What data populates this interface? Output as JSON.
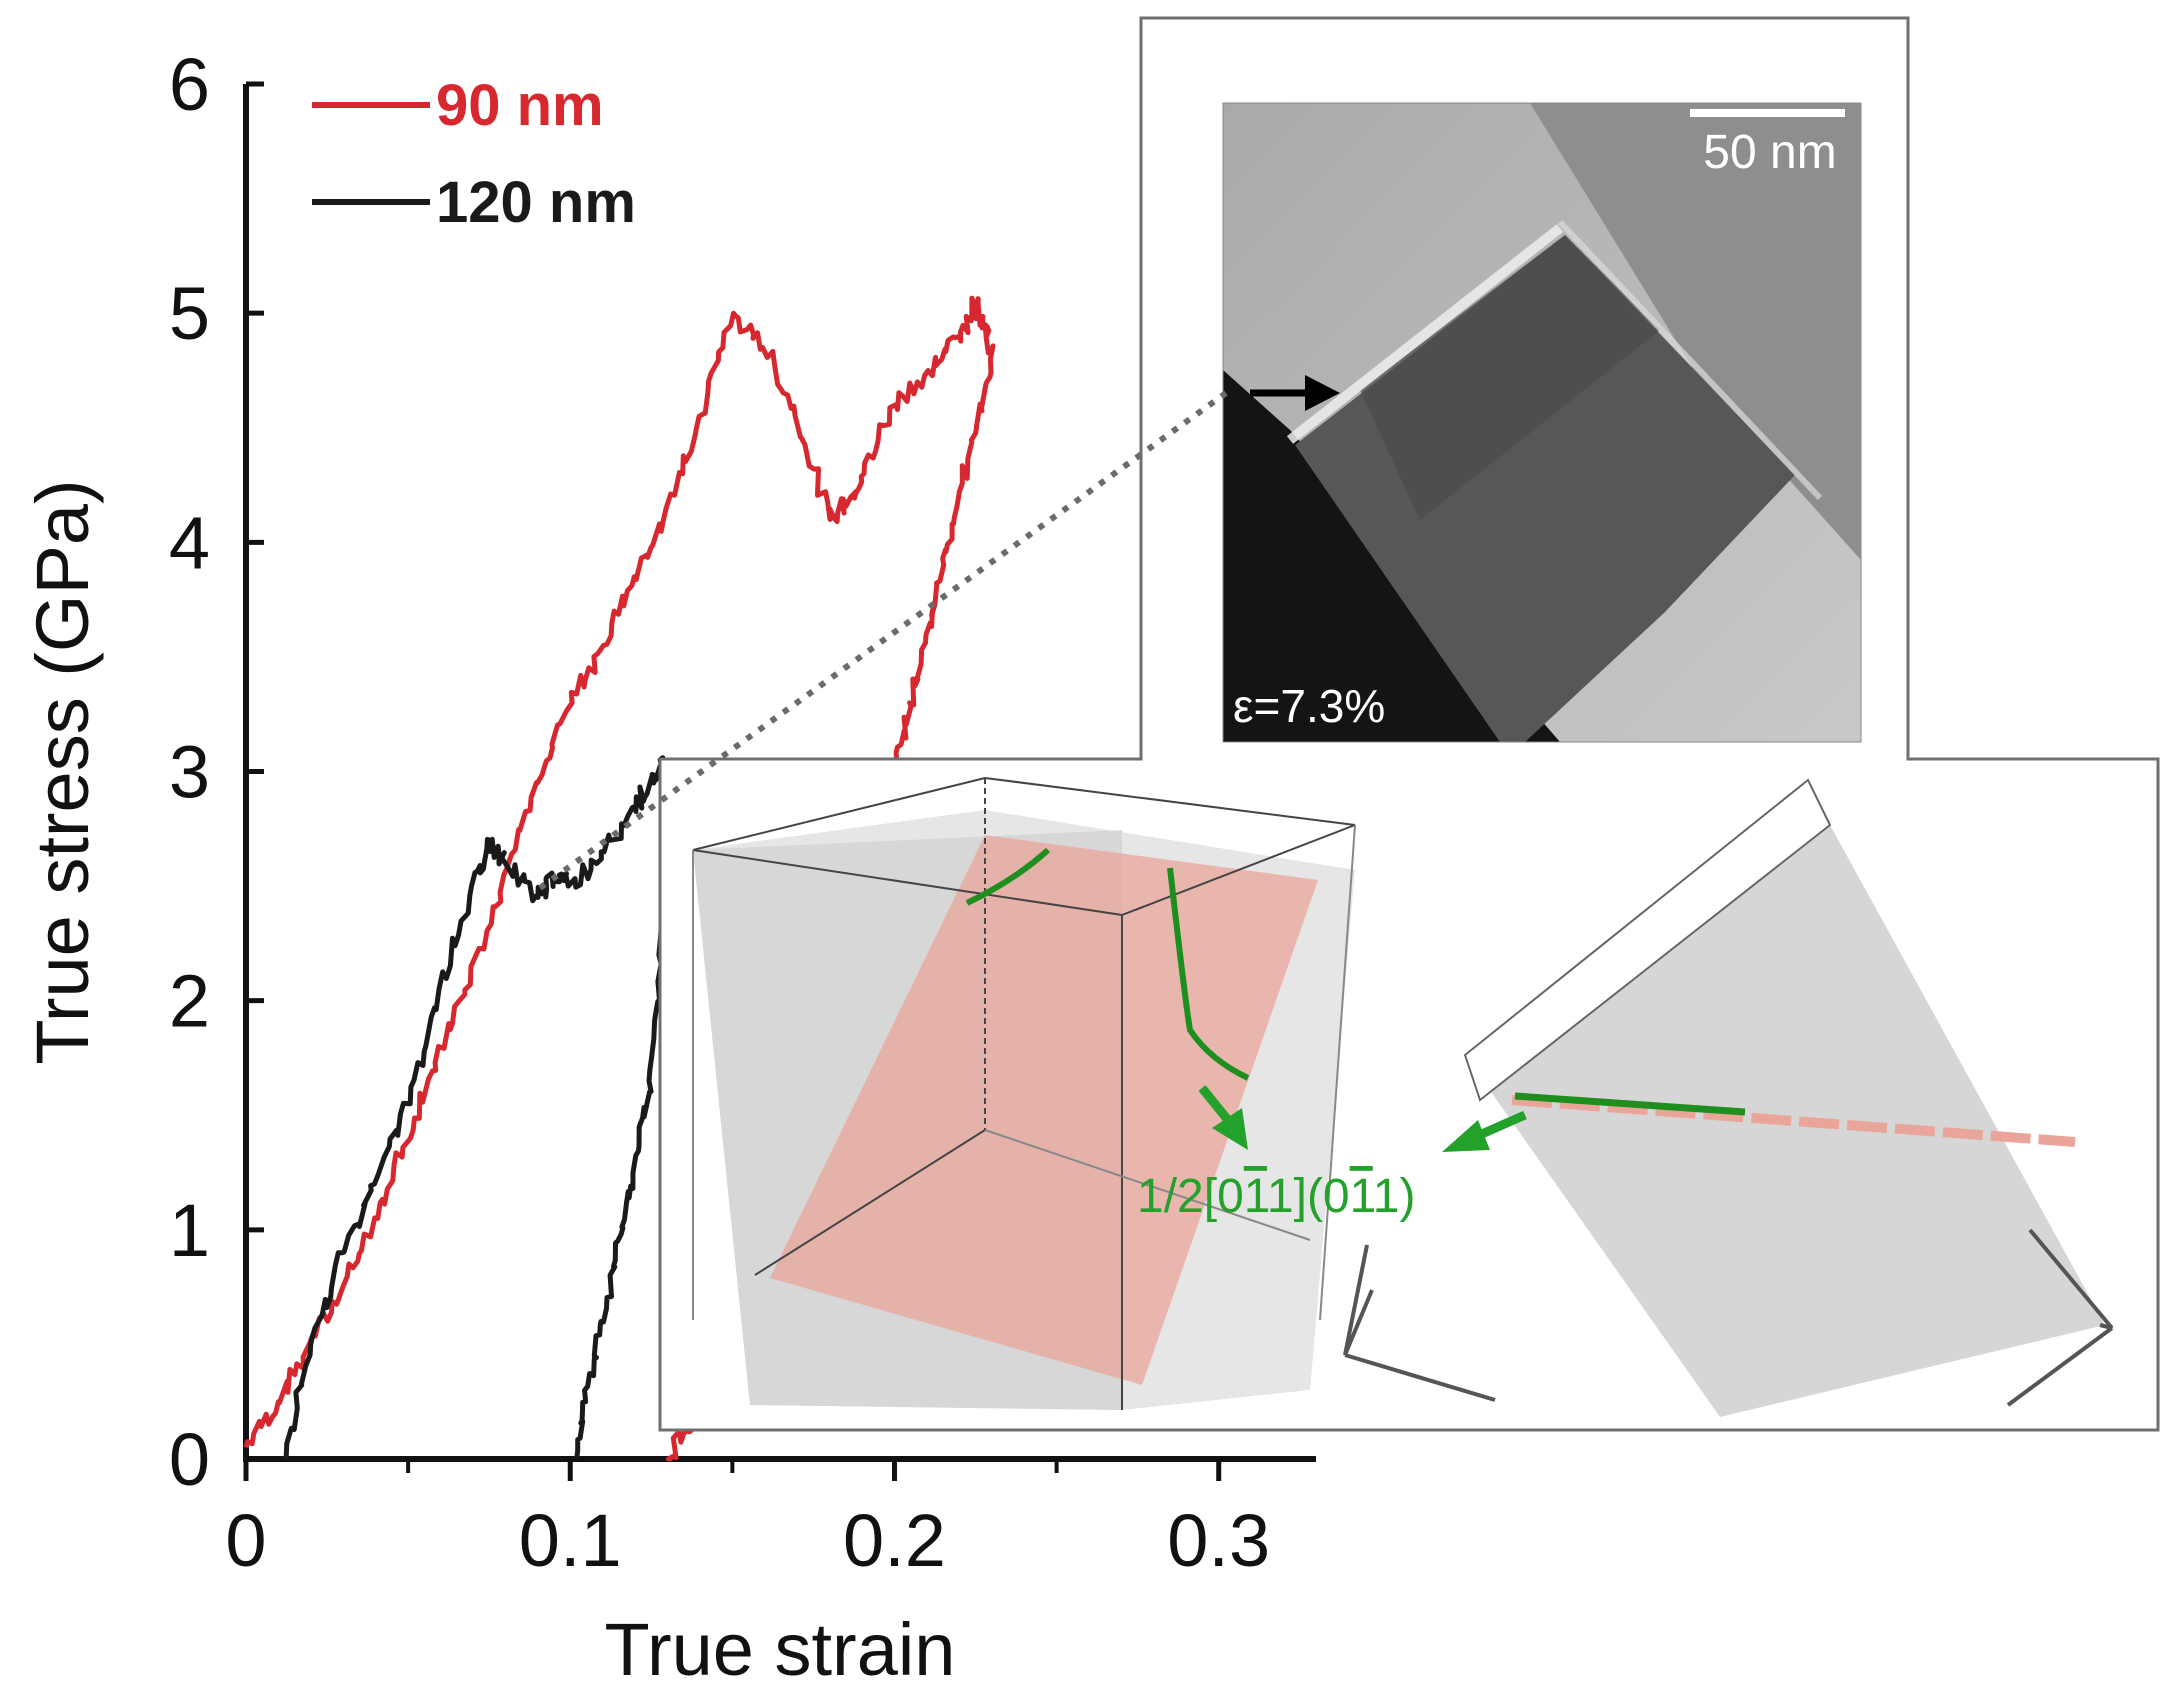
{
  "chart_data": {
    "type": "line",
    "xlabel": "True strain",
    "ylabel": "True stress (GPa)",
    "xlim": [
      0,
      0.33
    ],
    "ylim": [
      0,
      6
    ],
    "xticks": [
      0,
      0.1,
      0.2,
      0.3
    ],
    "xtick_labels": [
      "0",
      "0.1",
      "0.2",
      "0.3"
    ],
    "yticks": [
      0,
      1,
      2,
      3,
      4,
      5,
      6
    ],
    "ytick_labels": [
      "0",
      "1",
      "2",
      "3",
      "4",
      "5",
      "6"
    ],
    "legend_position": "top-left",
    "series": [
      {
        "name": "90 nm",
        "color": "#d7282f",
        "x": [
          0,
          0.01,
          0.02,
          0.03,
          0.04,
          0.05,
          0.06,
          0.07,
          0.08,
          0.09,
          0.1,
          0.11,
          0.12,
          0.13,
          0.14,
          0.15,
          0.16,
          0.17,
          0.18,
          0.187,
          0.19,
          0.2,
          0.21,
          0.22,
          0.225,
          0.228,
          0.23,
          0.225,
          0.22,
          0.215,
          0.21,
          0.205,
          0.2,
          0.195,
          0.19,
          0.185,
          0.18,
          0.175,
          0.17,
          0.165,
          0.16,
          0.155,
          0.15,
          0.145,
          0.14,
          0.135,
          0.13
        ],
        "y": [
          0.05,
          0.25,
          0.5,
          0.75,
          1.05,
          1.4,
          1.8,
          2.15,
          2.55,
          2.95,
          3.3,
          3.55,
          3.85,
          4.15,
          4.55,
          5.0,
          4.85,
          4.55,
          4.1,
          4.2,
          4.3,
          4.6,
          4.75,
          4.9,
          5.05,
          4.95,
          4.8,
          4.5,
          4.2,
          3.9,
          3.6,
          3.3,
          3.0,
          2.7,
          2.45,
          2.2,
          1.95,
          1.7,
          1.5,
          1.25,
          1.05,
          0.8,
          0.6,
          0.4,
          0.25,
          0.12,
          0.0
        ]
      },
      {
        "name": "120 nm",
        "color": "#1a1a1a",
        "x": [
          0.012,
          0.02,
          0.03,
          0.04,
          0.05,
          0.06,
          0.07,
          0.075,
          0.08,
          0.09,
          0.095,
          0.1,
          0.11,
          0.12,
          0.125,
          0.13,
          0.128,
          0.125,
          0.12,
          0.115,
          0.11,
          0.105,
          0.102
        ],
        "y": [
          0.0,
          0.5,
          0.9,
          1.2,
          1.55,
          2.05,
          2.5,
          2.7,
          2.6,
          2.45,
          2.55,
          2.5,
          2.65,
          2.85,
          2.95,
          3.05,
          2.2,
          1.65,
          1.25,
          0.95,
          0.6,
          0.3,
          0.0
        ]
      }
    ],
    "inset_tem": {
      "scale_bar_label": "50 nm",
      "strain_label": "ε=7.3%"
    },
    "inset_md": {
      "burgers_label_prefix": "1/2[0",
      "burgers_label_over1": "1",
      "burgers_label_mid": "1](0",
      "burgers_label_over2": "1",
      "burgers_label_suffix": "1)",
      "dislocation_color": "#1e8e1e",
      "slip_plane_color": "#e9a59a"
    }
  }
}
